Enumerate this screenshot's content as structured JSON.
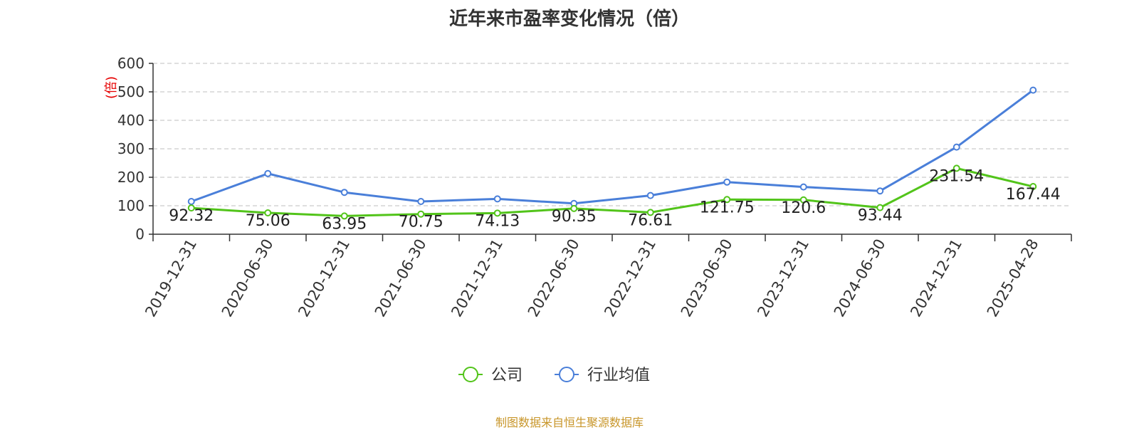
{
  "chart_data": {
    "type": "line",
    "title": "近年来市盈率变化情况（倍）",
    "ylabel": "(倍)",
    "ylim": [
      0,
      600
    ],
    "yticks": [
      0,
      100,
      200,
      300,
      400,
      500,
      600
    ],
    "grid": "horizontal-dashed",
    "legend_position": "bottom-center",
    "categories": [
      "2019-12-31",
      "2020-06-30",
      "2020-12-31",
      "2021-06-30",
      "2021-12-31",
      "2022-06-30",
      "2022-12-31",
      "2023-06-30",
      "2023-12-31",
      "2024-06-30",
      "2024-12-31",
      "2025-04-28"
    ],
    "series": [
      {
        "name": "公司",
        "color": "#52c41a",
        "values": [
          92.32,
          75.06,
          63.95,
          70.75,
          74.13,
          90.35,
          76.61,
          121.75,
          120.6,
          93.44,
          231.54,
          167.44
        ],
        "labels": [
          "92.32",
          "75.06",
          "63.95",
          "70.75",
          "74.13",
          "90.35",
          "76.61",
          "121.75",
          "120.6",
          "93.44",
          "231.54",
          "167.44"
        ]
      },
      {
        "name": "行业均值",
        "color": "#4a7fd9",
        "values": [
          115,
          213,
          147,
          115,
          124,
          108,
          136,
          183,
          166,
          152,
          306,
          506
        ]
      }
    ]
  },
  "footer": {
    "source": "制图数据来自恒生聚源数据库",
    "color": "#c8962a"
  },
  "colors": {
    "unit_label": "#e60000",
    "axis": "#333333",
    "grid": "#cccccc"
  }
}
